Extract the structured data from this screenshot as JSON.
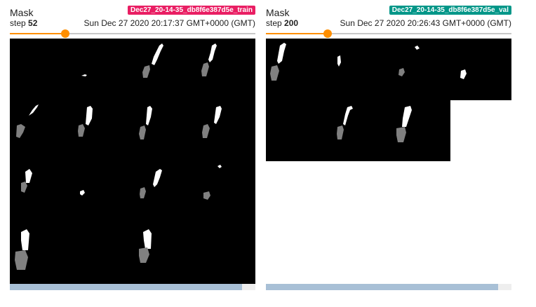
{
  "cards": [
    {
      "title": "Mask",
      "step_label": "step",
      "step_value": "52",
      "timestamp": "Sun Dec 27 2020 20:17:37 GMT+0000 (GMT)",
      "run_tag": "Dec27_20-14-35_db8f6e387d5e_train",
      "run_color": "#e91e63",
      "slider_fraction": 0.225,
      "scroll_fraction": 0.945,
      "image_description_icon": "mask-grid-image"
    },
    {
      "title": "Mask",
      "step_label": "step",
      "step_value": "200",
      "timestamp": "Sun Dec 27 2020 20:26:43 GMT+0000 (GMT)",
      "run_tag": "Dec27_20-14-35_db8f6e387d5e_val",
      "run_color": "#009688",
      "slider_fraction": 0.25,
      "scroll_fraction": 0.945,
      "image_description_icon": "mask-grid-image"
    }
  ],
  "accent_color": "#ff8f00"
}
